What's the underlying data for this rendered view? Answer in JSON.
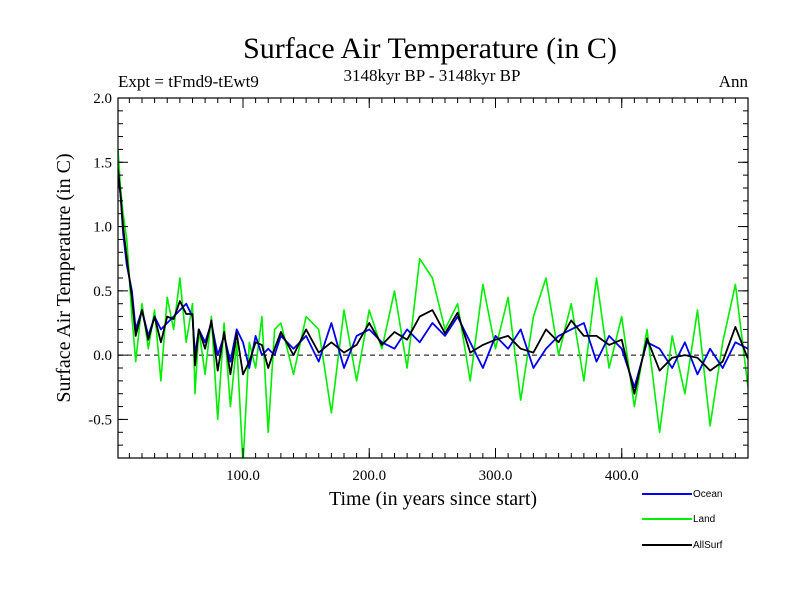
{
  "chart_data": {
    "type": "line",
    "title": "Surface Air Temperature (in C)",
    "subtitle": "3148kyr BP - 3148kyr BP",
    "experiment": "Expt = tFmd9-tEwt9",
    "period": "Ann",
    "xlabel": "Time (in years since start)",
    "ylabel": "Surface Air Temperature (in C)",
    "xlim": [
      1,
      500
    ],
    "ylim": [
      -0.8,
      2.0
    ],
    "x_ticks": [
      100,
      200,
      300,
      400
    ],
    "x_tick_labels": [
      "100.0",
      "200.0",
      "300.0",
      "400.0"
    ],
    "y_ticks": [
      -0.5,
      0.0,
      0.5,
      1.0,
      1.5,
      2.0
    ],
    "y_tick_labels": [
      "-0.5",
      "0.0",
      "0.5",
      "1.0",
      "1.5",
      "2.0"
    ],
    "zero_line": true,
    "legend_position": "bottom-right",
    "series": [
      {
        "name": "Ocean",
        "color": "#0000ee",
        "x": [
          1,
          3,
          5,
          8,
          12,
          15,
          20,
          25,
          30,
          35,
          40,
          45,
          50,
          55,
          60,
          62,
          65,
          70,
          75,
          80,
          85,
          90,
          95,
          100,
          105,
          110,
          115,
          120,
          125,
          130,
          140,
          150,
          160,
          170,
          180,
          190,
          200,
          210,
          220,
          230,
          240,
          250,
          260,
          270,
          280,
          290,
          300,
          310,
          320,
          330,
          340,
          350,
          360,
          370,
          380,
          390,
          400,
          410,
          420,
          430,
          440,
          450,
          460,
          470,
          480,
          490,
          500
        ],
        "values": [
          1.4,
          1.25,
          0.95,
          0.7,
          0.5,
          0.2,
          0.35,
          0.15,
          0.3,
          0.2,
          0.25,
          0.3,
          0.35,
          0.4,
          0.3,
          0.0,
          0.2,
          0.1,
          0.25,
          0.0,
          0.15,
          -0.05,
          0.2,
          0.1,
          -0.1,
          0.15,
          0.0,
          0.05,
          0.0,
          0.15,
          0.05,
          0.15,
          -0.05,
          0.25,
          -0.1,
          0.15,
          0.2,
          0.1,
          0.05,
          0.2,
          0.1,
          0.25,
          0.15,
          0.3,
          0.1,
          -0.1,
          0.15,
          0.05,
          0.2,
          -0.1,
          0.05,
          0.15,
          0.2,
          0.25,
          -0.05,
          0.15,
          0.05,
          -0.25,
          0.1,
          0.05,
          -0.1,
          0.1,
          -0.15,
          0.05,
          -0.1,
          0.1,
          0.05
        ]
      },
      {
        "name": "Land",
        "color": "#00ee00",
        "x": [
          1,
          3,
          5,
          8,
          12,
          15,
          20,
          25,
          30,
          35,
          40,
          45,
          50,
          55,
          60,
          62,
          65,
          70,
          75,
          80,
          85,
          90,
          95,
          100,
          105,
          110,
          115,
          120,
          125,
          130,
          140,
          150,
          160,
          170,
          180,
          190,
          200,
          210,
          220,
          230,
          240,
          250,
          260,
          270,
          280,
          290,
          300,
          310,
          320,
          330,
          340,
          350,
          360,
          370,
          380,
          390,
          400,
          410,
          420,
          430,
          440,
          450,
          460,
          470,
          480,
          490,
          500
        ],
        "values": [
          1.6,
          1.3,
          1.1,
          0.9,
          0.3,
          -0.05,
          0.4,
          0.05,
          0.35,
          -0.2,
          0.45,
          0.2,
          0.6,
          0.1,
          0.4,
          -0.3,
          0.2,
          -0.15,
          0.3,
          -0.5,
          0.25,
          -0.4,
          0.1,
          -0.85,
          0.1,
          -0.1,
          0.3,
          -0.6,
          0.2,
          0.25,
          -0.15,
          0.3,
          0.2,
          -0.45,
          0.35,
          -0.2,
          0.35,
          0.05,
          0.5,
          -0.1,
          0.75,
          0.6,
          0.2,
          0.4,
          -0.2,
          0.55,
          0.05,
          0.45,
          -0.35,
          0.3,
          0.6,
          0.0,
          0.4,
          -0.2,
          0.6,
          -0.1,
          0.3,
          -0.4,
          0.2,
          -0.6,
          0.15,
          -0.3,
          0.35,
          -0.55,
          0.1,
          0.55,
          -0.25
        ]
      },
      {
        "name": "AllSurf",
        "color": "#000000",
        "x": [
          1,
          3,
          5,
          8,
          12,
          15,
          20,
          25,
          30,
          35,
          40,
          45,
          50,
          55,
          60,
          62,
          65,
          70,
          75,
          80,
          85,
          90,
          95,
          100,
          105,
          110,
          115,
          120,
          125,
          130,
          140,
          150,
          160,
          170,
          180,
          190,
          200,
          210,
          220,
          230,
          240,
          250,
          260,
          270,
          280,
          290,
          300,
          310,
          320,
          330,
          340,
          350,
          360,
          370,
          380,
          390,
          400,
          410,
          420,
          430,
          440,
          450,
          460,
          470,
          480,
          490,
          500
        ],
        "values": [
          1.45,
          1.25,
          1.0,
          0.75,
          0.45,
          0.15,
          0.35,
          0.12,
          0.3,
          0.1,
          0.3,
          0.28,
          0.42,
          0.32,
          0.32,
          -0.08,
          0.2,
          0.05,
          0.27,
          -0.12,
          0.18,
          -0.15,
          0.17,
          -0.15,
          -0.05,
          0.1,
          0.08,
          -0.1,
          0.05,
          0.18,
          0.0,
          0.2,
          0.02,
          0.1,
          0.02,
          0.08,
          0.25,
          0.08,
          0.18,
          0.12,
          0.3,
          0.35,
          0.17,
          0.33,
          0.02,
          0.08,
          0.12,
          0.15,
          0.05,
          0.02,
          0.2,
          0.1,
          0.27,
          0.15,
          0.15,
          0.08,
          0.12,
          -0.3,
          0.13,
          -0.12,
          -0.02,
          0.0,
          -0.02,
          -0.12,
          -0.05,
          0.22,
          -0.03
        ]
      }
    ]
  }
}
